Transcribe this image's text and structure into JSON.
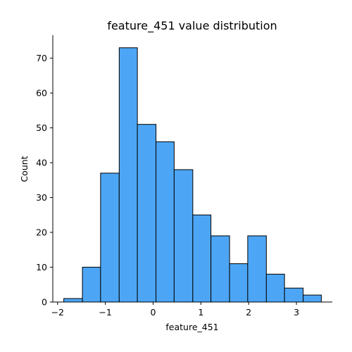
{
  "chart_data": {
    "type": "bar",
    "title": "feature_451 value distribution",
    "xlabel": "feature_451",
    "ylabel": "Count",
    "bin_edges": [
      -1.87,
      -1.48,
      -1.1,
      -0.71,
      -0.33,
      0.06,
      0.44,
      0.83,
      1.21,
      1.6,
      1.98,
      2.37,
      2.75,
      3.14,
      3.52
    ],
    "values": [
      1,
      10,
      37,
      73,
      51,
      46,
      38,
      25,
      19,
      11,
      19,
      8,
      4,
      2
    ],
    "xlim": [
      -2.1,
      3.75
    ],
    "ylim": [
      0,
      76.6
    ],
    "xticks": [
      -2,
      -1,
      0,
      1,
      2,
      3
    ],
    "xtick_labels": [
      "−2",
      "−1",
      "0",
      "1",
      "2",
      "3"
    ],
    "yticks": [
      0,
      10,
      20,
      30,
      40,
      50,
      60,
      70
    ],
    "ytick_labels": [
      "0",
      "10",
      "20",
      "30",
      "40",
      "50",
      "60",
      "70"
    ],
    "bar_color": "#4da6f5",
    "grid": false,
    "legend": "none"
  }
}
